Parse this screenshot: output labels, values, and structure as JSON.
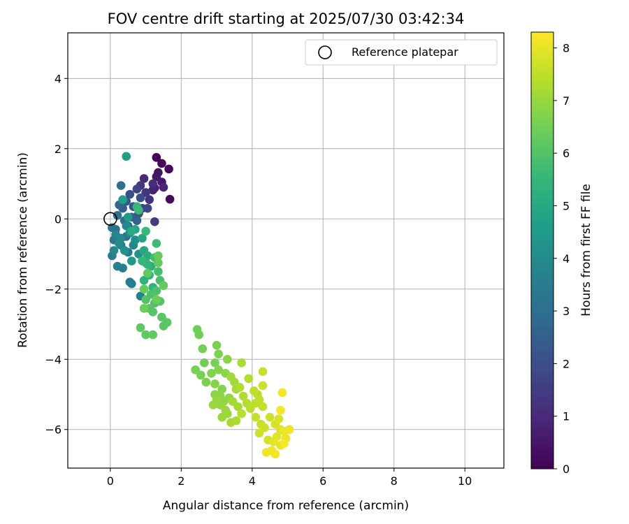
{
  "chart_data": {
    "type": "scatter",
    "title": "FOV centre drift starting at 2025/07/30 03:42:34",
    "xlabel": "Angular distance from reference (arcmin)",
    "ylabel": "Rotation from reference (arcmin)",
    "xlim": [
      -1.2,
      11.1
    ],
    "ylim": [
      -7.1,
      5.3
    ],
    "xticks": [
      "0",
      "2",
      "4",
      "6",
      "8",
      "10"
    ],
    "yticks": [
      "4",
      "2",
      "0",
      "−2",
      "−4",
      "−6"
    ],
    "grid": true,
    "legend": {
      "location": "top-right",
      "entries": [
        "Reference platepar"
      ]
    },
    "reference_point": {
      "x": 0,
      "y": 0
    },
    "colorbar": {
      "label": "Hours from first FF file",
      "range": [
        0,
        8.3
      ],
      "ticks": [
        "0",
        "1",
        "2",
        "3",
        "4",
        "5",
        "6",
        "7",
        "8"
      ],
      "colormap": "viridis",
      "colors": [
        "#440154",
        "#482878",
        "#3e4989",
        "#31688e",
        "#26828e",
        "#1f9e89",
        "#35b779",
        "#6ece58",
        "#b5de2b",
        "#fde725"
      ]
    },
    "series": [
      {
        "points": [
          [
            1.3,
            1.75,
            0.1
          ],
          [
            1.45,
            1.58,
            0.15
          ],
          [
            1.65,
            1.42,
            0.2
          ],
          [
            1.68,
            0.56,
            0.25
          ],
          [
            1.35,
            1.32,
            0.4
          ],
          [
            1.3,
            1.2,
            0.5
          ],
          [
            1.45,
            1.05,
            0.6
          ],
          [
            1.25,
            0.88,
            0.7
          ],
          [
            1.2,
            0.82,
            0.8
          ],
          [
            1.5,
            0.9,
            0.9
          ],
          [
            0.95,
            1.15,
            1.0
          ],
          [
            1.2,
            1.0,
            1.1
          ],
          [
            1.1,
            0.55,
            1.2
          ],
          [
            1.0,
            0.75,
            1.3
          ],
          [
            0.85,
            0.95,
            1.4
          ],
          [
            1.25,
            -0.08,
            1.5
          ],
          [
            0.9,
            0.3,
            1.6
          ],
          [
            0.75,
            0.85,
            1.7
          ],
          [
            1.05,
            0.3,
            1.8
          ],
          [
            0.85,
            0.6,
            1.9
          ],
          [
            0.55,
            0.7,
            2.0
          ],
          [
            0.65,
            0.35,
            2.1
          ],
          [
            0.8,
            0.15,
            2.2
          ],
          [
            0.45,
            0.5,
            2.3
          ],
          [
            0.6,
            0.05,
            2.4
          ],
          [
            0.35,
            0.3,
            2.5
          ],
          [
            0.75,
            -0.05,
            2.6
          ],
          [
            0.5,
            -0.2,
            2.7
          ],
          [
            0.25,
            0.4,
            2.8
          ],
          [
            0.4,
            -0.05,
            2.9
          ],
          [
            0.2,
            0.1,
            3.0
          ],
          [
            0.3,
            0.95,
            3.1
          ],
          [
            0.15,
            -0.3,
            3.15
          ],
          [
            0.45,
            -0.5,
            3.2
          ],
          [
            0.05,
            -0.25,
            3.25
          ],
          [
            0.1,
            -0.6,
            3.3
          ],
          [
            0.3,
            -0.75,
            3.35
          ],
          [
            0.5,
            -0.95,
            3.4
          ],
          [
            0.05,
            -1.05,
            3.45
          ],
          [
            0.35,
            -1.4,
            3.5
          ],
          [
            0.2,
            -1.35,
            3.55
          ],
          [
            0.55,
            -1.8,
            3.6
          ],
          [
            0.6,
            -1.85,
            3.65
          ],
          [
            0.85,
            -2.2,
            3.7
          ],
          [
            0.15,
            -0.45,
            3.75
          ],
          [
            0.65,
            -0.75,
            3.8
          ],
          [
            0.3,
            -0.55,
            3.85
          ],
          [
            0.1,
            -0.9,
            3.9
          ],
          [
            0.45,
            -0.2,
            3.95
          ],
          [
            0.25,
            -0.7,
            4.0
          ],
          [
            0.55,
            -0.4,
            4.05
          ],
          [
            0.7,
            -0.6,
            4.1
          ],
          [
            0.4,
            -0.9,
            4.2
          ],
          [
            0.8,
            -1.0,
            4.3
          ],
          [
            0.6,
            -1.2,
            4.4
          ],
          [
            0.5,
            0.05,
            4.5
          ],
          [
            0.45,
            1.78,
            4.6
          ],
          [
            0.35,
            0.55,
            4.7
          ],
          [
            0.7,
            -0.3,
            4.8
          ],
          [
            0.9,
            -0.55,
            4.9
          ],
          [
            0.95,
            -0.9,
            5.0
          ],
          [
            1.05,
            -1.05,
            5.1
          ],
          [
            0.6,
            -0.35,
            5.15
          ],
          [
            1.0,
            -1.25,
            5.2
          ],
          [
            1.15,
            -1.35,
            5.25
          ],
          [
            1.1,
            -1.6,
            5.3
          ],
          [
            0.95,
            -1.75,
            5.35
          ],
          [
            1.2,
            -1.95,
            5.4
          ],
          [
            1.05,
            -1.3,
            5.45
          ],
          [
            0.9,
            -1.2,
            5.5
          ],
          [
            0.75,
            0.35,
            5.55
          ],
          [
            1.0,
            -0.35,
            5.6
          ],
          [
            0.8,
            0.25,
            5.65
          ],
          [
            1.3,
            -0.7,
            5.7
          ],
          [
            1.25,
            -1.1,
            5.75
          ],
          [
            1.35,
            -1.5,
            5.8
          ],
          [
            1.4,
            -1.75,
            5.85
          ],
          [
            1.3,
            -2.05,
            5.9
          ],
          [
            1.15,
            -2.15,
            5.95
          ],
          [
            1.0,
            -2.3,
            6.0
          ],
          [
            1.25,
            -2.4,
            6.0
          ],
          [
            1.1,
            -2.55,
            6.05
          ],
          [
            1.4,
            -2.35,
            6.05
          ],
          [
            1.45,
            -2.8,
            6.1
          ],
          [
            1.2,
            -2.65,
            6.1
          ],
          [
            1.5,
            -3.05,
            6.15
          ],
          [
            1.6,
            -2.95,
            6.15
          ],
          [
            0.85,
            -3.1,
            6.2
          ],
          [
            1.0,
            -3.3,
            6.2
          ],
          [
            1.2,
            -3.3,
            6.25
          ],
          [
            1.05,
            -1.55,
            6.25
          ],
          [
            1.5,
            -1.9,
            6.3
          ],
          [
            1.35,
            -1.25,
            6.3
          ],
          [
            0.95,
            -2.0,
            6.35
          ],
          [
            1.35,
            -1.05,
            6.35
          ],
          [
            0.95,
            -2.55,
            6.4
          ],
          [
            1.3,
            -2.3,
            6.4
          ],
          [
            2.45,
            -3.15,
            6.45
          ],
          [
            2.5,
            -3.3,
            6.45
          ],
          [
            2.6,
            -3.7,
            6.5
          ],
          [
            2.65,
            -4.1,
            6.5
          ],
          [
            2.4,
            -4.3,
            6.55
          ],
          [
            2.55,
            -4.45,
            6.55
          ],
          [
            2.7,
            -4.65,
            6.6
          ],
          [
            2.95,
            -4.1,
            6.6
          ],
          [
            3.0,
            -3.6,
            6.65
          ],
          [
            3.05,
            -3.85,
            6.65
          ],
          [
            2.85,
            -4.4,
            6.7
          ],
          [
            3.05,
            -4.3,
            6.7
          ],
          [
            2.95,
            -4.7,
            6.75
          ],
          [
            3.15,
            -4.85,
            6.75
          ],
          [
            3.3,
            -4.0,
            6.8
          ],
          [
            3.25,
            -4.4,
            6.8
          ],
          [
            3.1,
            -5.05,
            6.85
          ],
          [
            2.95,
            -5.0,
            6.85
          ],
          [
            3.35,
            -5.1,
            6.9
          ],
          [
            3.2,
            -5.2,
            6.9
          ],
          [
            3.1,
            -5.3,
            6.95
          ],
          [
            3.0,
            -5.15,
            6.95
          ],
          [
            2.9,
            -5.3,
            7.0
          ],
          [
            3.25,
            -5.45,
            7.0
          ],
          [
            3.15,
            -5.65,
            7.05
          ],
          [
            3.3,
            -5.55,
            7.05
          ],
          [
            3.4,
            -4.5,
            7.1
          ],
          [
            3.5,
            -4.65,
            7.1
          ],
          [
            3.55,
            -4.85,
            7.15
          ],
          [
            3.45,
            -5.2,
            7.15
          ],
          [
            3.6,
            -5.35,
            7.2
          ],
          [
            3.4,
            -5.8,
            7.2
          ],
          [
            3.55,
            -5.75,
            7.25
          ],
          [
            3.7,
            -4.1,
            7.25
          ],
          [
            3.65,
            -4.8,
            7.3
          ],
          [
            3.75,
            -5.05,
            7.3
          ],
          [
            3.9,
            -4.55,
            7.35
          ],
          [
            3.85,
            -5.25,
            7.35
          ],
          [
            3.7,
            -5.55,
            7.4
          ],
          [
            3.95,
            -5.4,
            7.4
          ],
          [
            4.1,
            -5.25,
            7.45
          ],
          [
            4.15,
            -5.0,
            7.45
          ],
          [
            4.05,
            -4.9,
            7.5
          ],
          [
            4.2,
            -5.15,
            7.5
          ],
          [
            4.3,
            -5.35,
            7.55
          ],
          [
            4.1,
            -5.65,
            7.55
          ],
          [
            4.25,
            -5.85,
            7.6
          ],
          [
            4.3,
            -4.35,
            7.6
          ],
          [
            4.3,
            -4.75,
            7.65
          ],
          [
            4.35,
            -5.95,
            7.65
          ],
          [
            4.2,
            -6.1,
            7.7
          ],
          [
            4.5,
            -5.65,
            7.7
          ],
          [
            4.45,
            -6.3,
            7.75
          ],
          [
            4.65,
            -5.85,
            7.8
          ],
          [
            4.75,
            -5.7,
            7.85
          ],
          [
            4.8,
            -6.0,
            7.9
          ],
          [
            4.7,
            -6.2,
            7.95
          ],
          [
            4.6,
            -6.35,
            8.0
          ],
          [
            4.8,
            -6.45,
            8.0
          ],
          [
            4.9,
            -6.05,
            8.05
          ],
          [
            4.95,
            -6.25,
            8.05
          ],
          [
            5.05,
            -6.0,
            8.1
          ],
          [
            4.55,
            -6.6,
            8.1
          ],
          [
            4.4,
            -6.65,
            8.15
          ],
          [
            4.65,
            -6.7,
            8.15
          ],
          [
            4.85,
            -4.95,
            8.2
          ],
          [
            4.8,
            -5.45,
            8.2
          ],
          [
            4.9,
            -6.4,
            8.25
          ]
        ]
      }
    ]
  }
}
